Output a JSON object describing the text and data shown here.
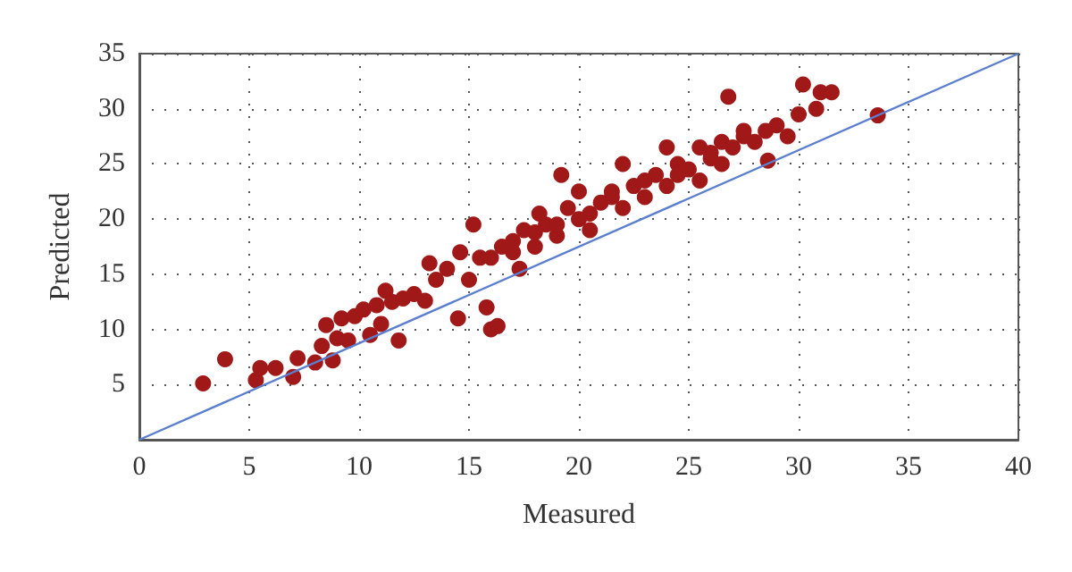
{
  "chart_data": {
    "type": "scatter",
    "xlabel": "Measured",
    "ylabel": "Predicted",
    "xlim": [
      0,
      40
    ],
    "ylim": [
      0,
      35
    ],
    "xticks": [
      0,
      5,
      10,
      15,
      20,
      25,
      30,
      35,
      40
    ],
    "yticks": [
      {
        "value": 0,
        "label": null
      },
      5,
      10,
      15,
      20,
      25,
      30,
      35
    ],
    "grid": true,
    "marker": "circle",
    "series": [
      {
        "color": "#a01818",
        "x": [
          2.9,
          3.9,
          5.3,
          5.5,
          6.2,
          7.0,
          7.2,
          8.0,
          8.3,
          8.5,
          8.8,
          9.0,
          9.2,
          9.5,
          9.8,
          10.2,
          10.5,
          10.8,
          11.0,
          11.2,
          11.5,
          11.8,
          12.0,
          12.5,
          13.0,
          13.2,
          13.5,
          14.0,
          14.5,
          14.6,
          15.0,
          15.2,
          15.5,
          15.8,
          16.0,
          16.3,
          16.5,
          17.0,
          17.3,
          17.5,
          18.0,
          18.2,
          18.5,
          19.0,
          19.2,
          19.5,
          20.0,
          20.0,
          20.5,
          21.0,
          21.5,
          22.0,
          22.0,
          22.5,
          23.0,
          23.5,
          24.0,
          24.0,
          24.5,
          25.0,
          25.5,
          25.5,
          26.0,
          26.5,
          26.5,
          26.8,
          27.0,
          27.5,
          28.0,
          28.5,
          28.6,
          29.0,
          29.5,
          30.0,
          30.2,
          30.8,
          31.0,
          31.5,
          33.6,
          16.0,
          17.0,
          18.0,
          19.0,
          20.5,
          21.5,
          23.0,
          24.5,
          26.0,
          27.5
        ],
        "values": [
          5.1,
          7.3,
          5.4,
          6.5,
          6.5,
          5.7,
          7.4,
          7.0,
          8.5,
          10.4,
          7.2,
          9.2,
          11.0,
          9.0,
          11.2,
          11.8,
          9.5,
          12.2,
          10.5,
          13.5,
          12.5,
          9.0,
          12.8,
          13.2,
          12.6,
          16.0,
          14.5,
          15.5,
          11.0,
          17.0,
          14.5,
          19.5,
          16.5,
          12.0,
          10.0,
          10.3,
          17.5,
          18.0,
          15.5,
          19.0,
          17.5,
          20.5,
          19.5,
          18.5,
          24.0,
          21.0,
          20.0,
          22.5,
          19.0,
          21.5,
          22.5,
          21.0,
          25.0,
          23.0,
          22.0,
          24.0,
          23.0,
          26.5,
          25.0,
          24.5,
          26.5,
          23.5,
          25.5,
          27.0,
          25.0,
          31.1,
          26.5,
          27.5,
          27.0,
          28.0,
          25.3,
          28.5,
          27.5,
          29.5,
          32.2,
          30.0,
          31.5,
          31.5,
          29.4,
          16.5,
          17.0,
          18.8,
          19.5,
          20.5,
          22.0,
          23.5,
          24.0,
          26.0,
          28.0
        ]
      },
      {
        "type": "line",
        "marker": "none",
        "color": "#5b7fcf",
        "x": [
          0,
          40
        ],
        "values": [
          0,
          35
        ]
      }
    ]
  }
}
